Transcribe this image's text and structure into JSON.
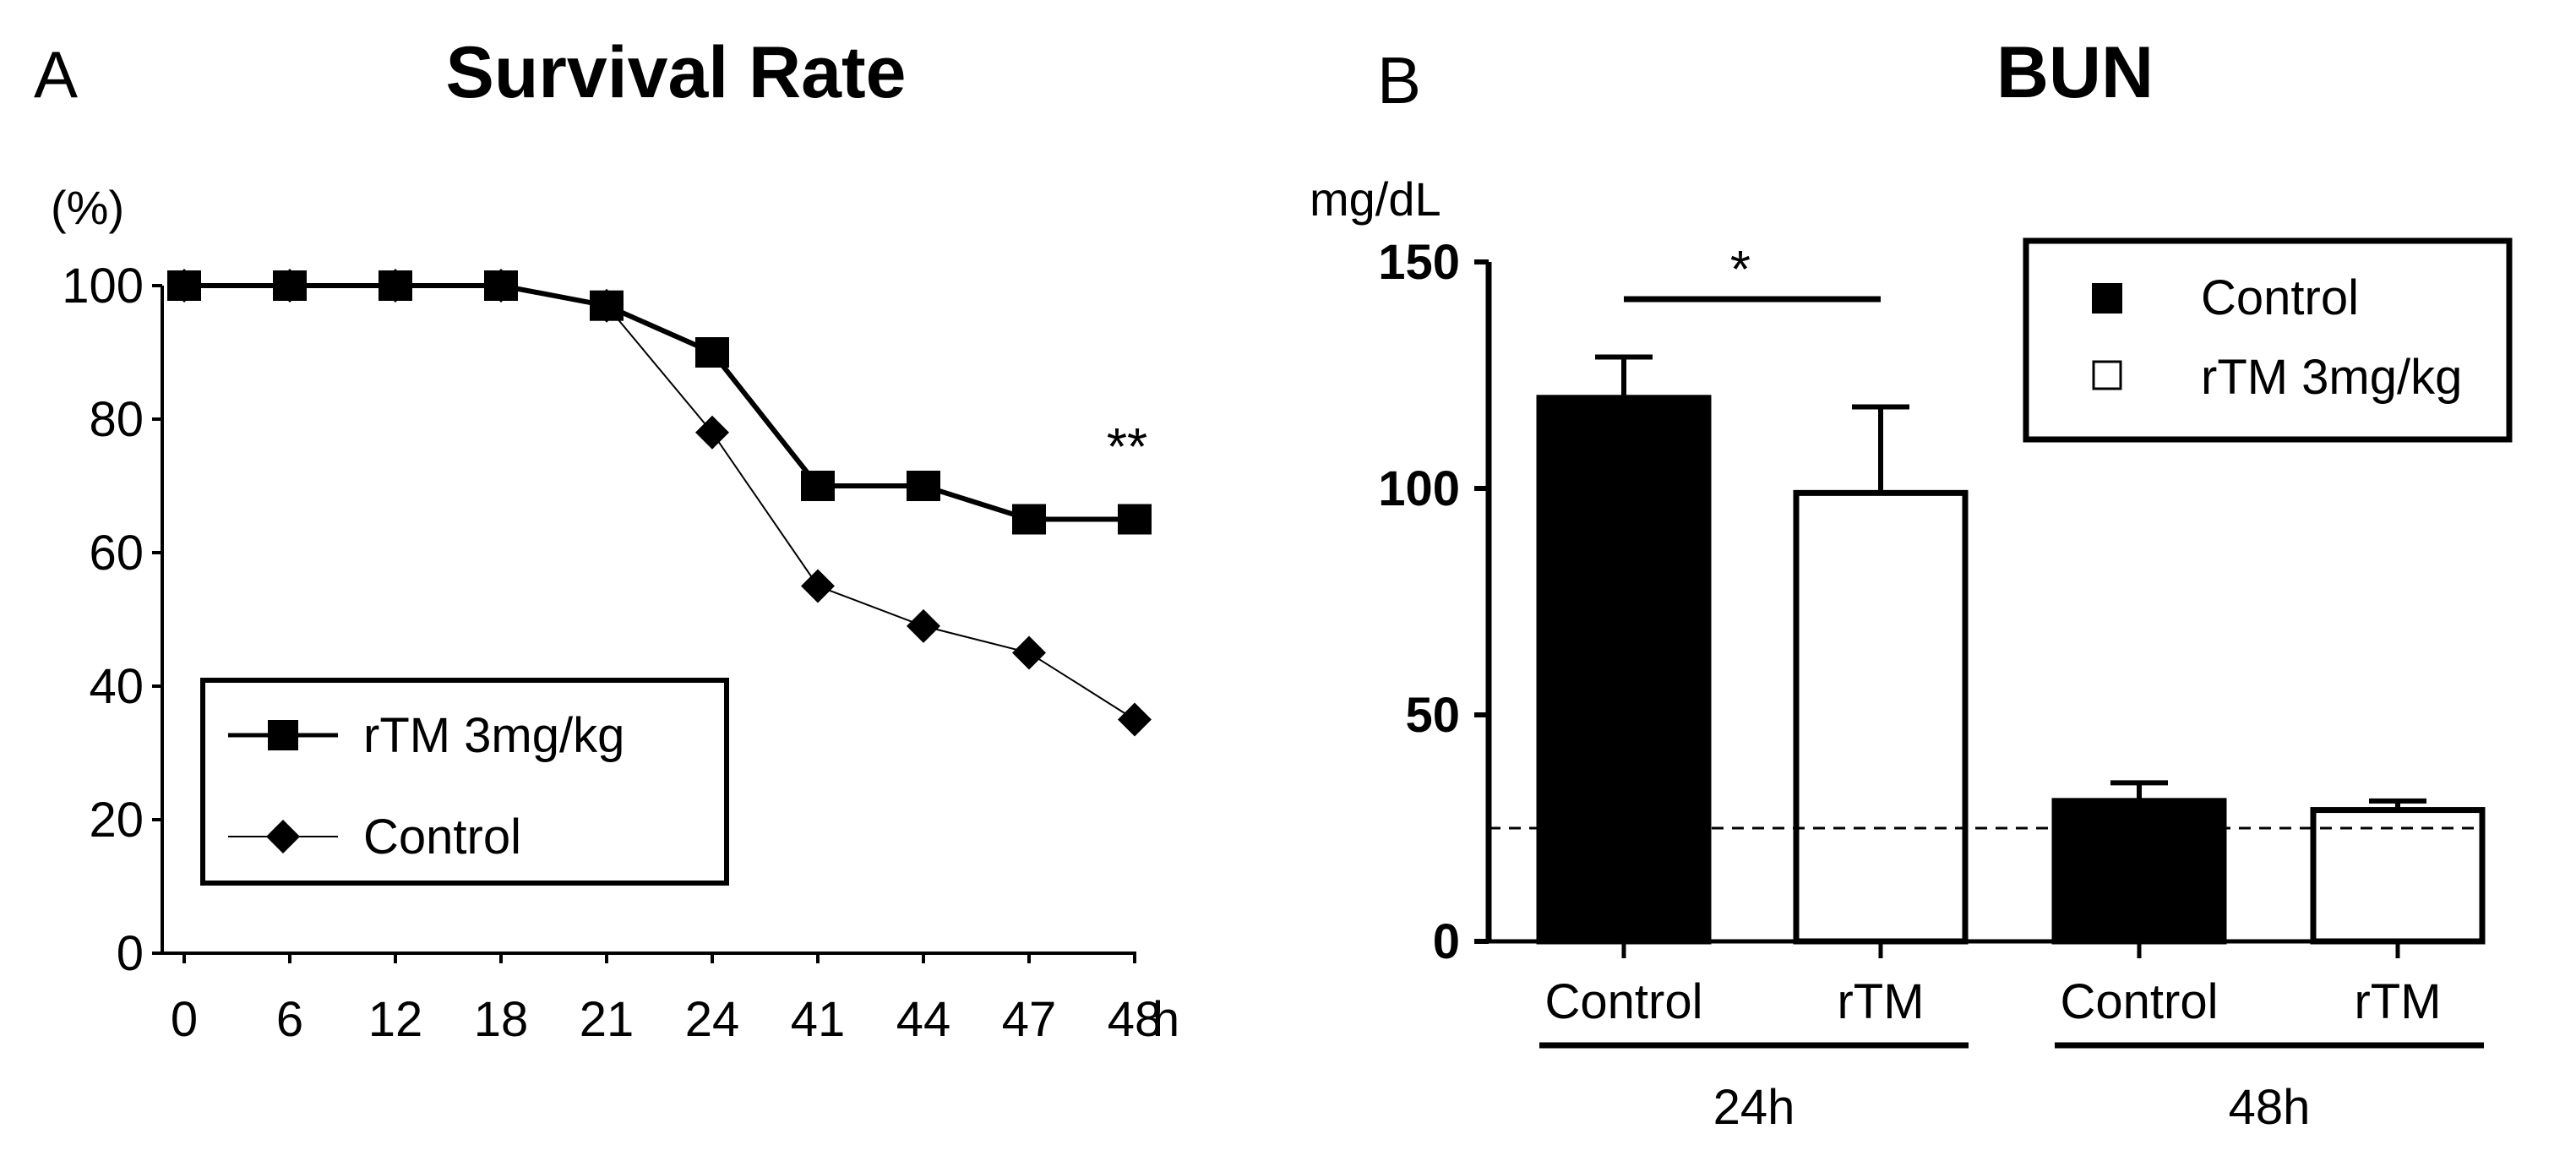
{
  "chart_data": [
    {
      "panel": "A",
      "type": "line",
      "title": "Survival Rate",
      "ylabel": "(%)",
      "x_unit": "h",
      "categories": [
        "0",
        "6",
        "12",
        "18",
        "21",
        "24",
        "41",
        "44",
        "47",
        "48"
      ],
      "ylim": [
        0,
        100
      ],
      "yticks": [
        "0",
        "20",
        "40",
        "60",
        "80",
        "100"
      ],
      "series": [
        {
          "name": "rTM 3mg/kg",
          "marker": "square",
          "values": [
            100,
            100,
            100,
            100,
            97,
            90,
            70,
            70,
            65,
            65
          ]
        },
        {
          "name": "Control",
          "marker": "diamond",
          "values": [
            100,
            100,
            100,
            100,
            97,
            78,
            55,
            49,
            45,
            35
          ]
        }
      ],
      "annotations": [
        "**"
      ],
      "legend_position": "lower-left"
    },
    {
      "panel": "B",
      "type": "bar",
      "title": "BUN",
      "ylabel": "mg/dL",
      "ylim": [
        0,
        150
      ],
      "yticks": [
        "0",
        "50",
        "100",
        "150"
      ],
      "categories": [
        "Control",
        "rTM",
        "Control",
        "rTM"
      ],
      "groups": [
        "24h",
        "48h"
      ],
      "values": [
        120,
        99,
        31,
        29
      ],
      "errors": [
        9,
        19,
        4,
        2
      ],
      "series": [
        {
          "name": "Control",
          "color": "#000000"
        },
        {
          "name": "rTM 3mg/kg",
          "color": "#ffffff"
        }
      ],
      "reference_line": 25,
      "annotations": [
        "*"
      ],
      "legend_position": "top-right"
    }
  ]
}
